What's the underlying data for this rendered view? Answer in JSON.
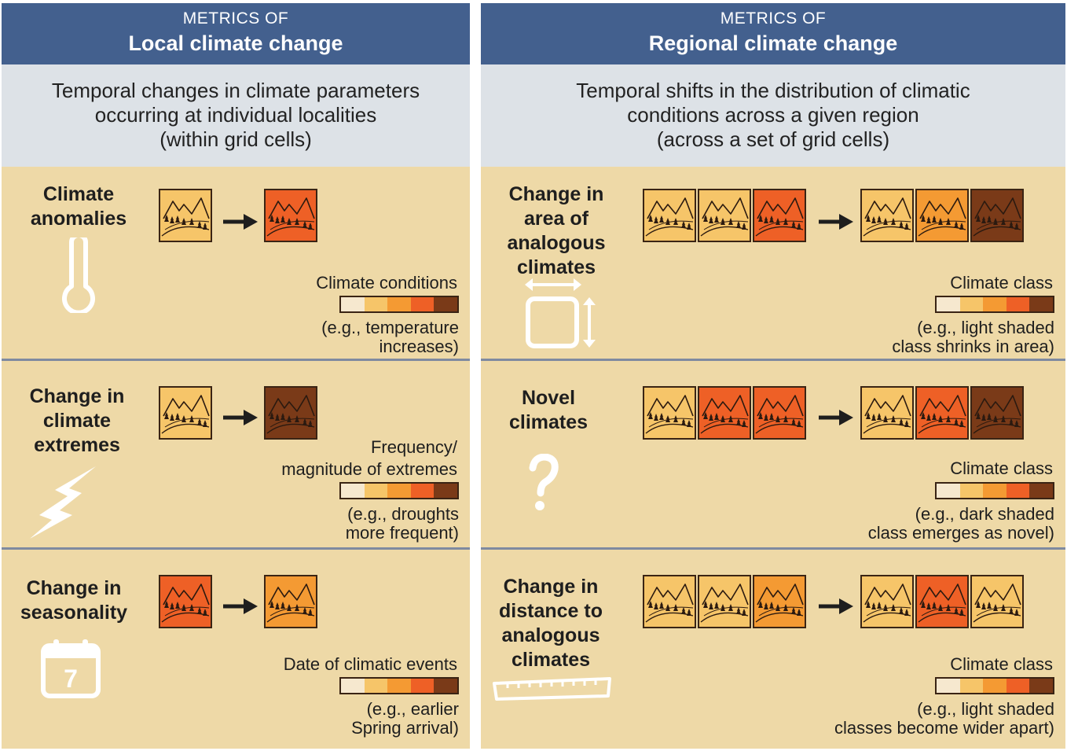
{
  "colors": {
    "header": "#43608e",
    "description_bg": "#dde2e7",
    "panel_bg": "#eed9a7",
    "class_1": "#f6e8cf",
    "class_2": "#f6c569",
    "class_3": "#f49a33",
    "class_4": "#ee6026",
    "class_5": "#7a3a18"
  },
  "left": {
    "header_small": "METRICS OF",
    "header_big": "Local climate change",
    "desc": [
      "Temporal changes in climate parameters",
      "occurring at individual localities",
      "(within grid cells)"
    ],
    "rows": [
      {
        "title": [
          "Climate",
          "anomalies"
        ],
        "icon": "thermometer-icon",
        "before": [
          "class_2"
        ],
        "after": [
          "class_4"
        ],
        "label": [
          "Climate conditions"
        ],
        "example": [
          "(e.g., temperature",
          "increases)"
        ]
      },
      {
        "title": [
          "Change in",
          "climate",
          "extremes"
        ],
        "icon": "lightning-icon",
        "before": [
          "class_2"
        ],
        "after": [
          "class_5"
        ],
        "label": [
          "Frequency/",
          "magnitude of extremes"
        ],
        "example": [
          "(e.g., droughts",
          "more frequent)"
        ]
      },
      {
        "title": [
          "Change in",
          "seasonality"
        ],
        "icon": "calendar-icon",
        "calendar_day": "7",
        "before": [
          "class_4"
        ],
        "after": [
          "class_3"
        ],
        "label": [
          "Date of climatic events"
        ],
        "example": [
          "(e.g., earlier",
          "Spring arrival)"
        ]
      }
    ]
  },
  "right": {
    "header_small": "METRICS OF",
    "header_big": "Regional climate change",
    "desc": [
      "Temporal shifts in the distribution of climatic",
      "conditions across a given region",
      "(across a set of grid cells)"
    ],
    "rows": [
      {
        "title": [
          "Change in",
          "area of",
          "analogous",
          "climates"
        ],
        "icon": "resize-square-icon",
        "before": [
          "class_2",
          "class_2",
          "class_4"
        ],
        "after": [
          "class_2",
          "class_3",
          "class_5"
        ],
        "label": [
          "Climate class"
        ],
        "example": [
          "(e.g., light shaded",
          "class shrinks in area)"
        ]
      },
      {
        "title": [
          "Novel",
          "climates"
        ],
        "icon": "question-mark-icon",
        "before": [
          "class_2",
          "class_4",
          "class_4"
        ],
        "after": [
          "class_2",
          "class_4",
          "class_5"
        ],
        "label": [
          "Climate class"
        ],
        "example": [
          "(e.g., dark shaded",
          "class emerges as novel)"
        ]
      },
      {
        "title": [
          "Change in",
          "distance to",
          "analogous",
          "climates"
        ],
        "icon": "ruler-icon",
        "before": [
          "class_2",
          "class_2",
          "class_3"
        ],
        "after": [
          "class_2",
          "class_4",
          "class_2"
        ],
        "label": [
          "Climate class"
        ],
        "example": [
          "(e.g., light shaded",
          "classes become wider apart)"
        ]
      }
    ]
  }
}
